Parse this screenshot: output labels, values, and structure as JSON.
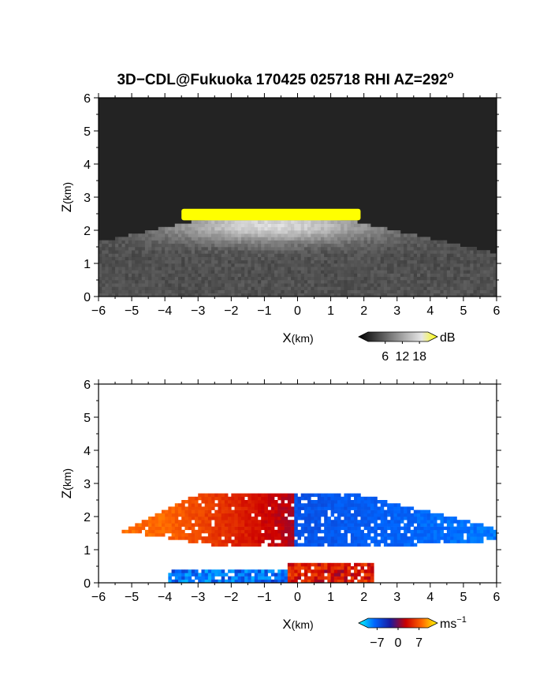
{
  "title": "3D−CDL@Fukuoka 170425 025718 RHI AZ=292",
  "title_sup": "o",
  "chart_data": [
    {
      "type": "heatmap",
      "name": "reflectivity",
      "xlabel_main": "X",
      "xlabel_unit": "(km)",
      "ylabel_main": "Z",
      "ylabel_unit": "(km)",
      "xlim": [
        -6,
        6
      ],
      "ylim": [
        0,
        6
      ],
      "xticks": [
        -6,
        -5,
        -4,
        -3,
        -2,
        -1,
        0,
        1,
        2,
        3,
        4,
        5,
        6
      ],
      "yticks": [
        0,
        1,
        2,
        3,
        4,
        5,
        6
      ],
      "colorbar": {
        "unit": "dB",
        "ticks": [
          6,
          12,
          18
        ],
        "range": [
          0,
          21
        ],
        "colors": [
          "#000000",
          "#3a3a3a",
          "#777777",
          "#b0b0b0",
          "#e6e6e6",
          "#ffff00"
        ]
      },
      "features": {
        "background": "#232323",
        "saturated_layer": {
          "x": [
            -3.5,
            1.9
          ],
          "z": [
            2.3,
            2.65
          ],
          "color": "#ffff00"
        },
        "melting_layer_top_km": 2.6
      }
    },
    {
      "type": "heatmap",
      "name": "doppler_velocity",
      "xlabel_main": "X",
      "xlabel_unit": "(km)",
      "ylabel_main": "Z",
      "ylabel_unit": "(km)",
      "xlim": [
        -6,
        6
      ],
      "ylim": [
        0,
        6
      ],
      "xticks": [
        -6,
        -5,
        -4,
        -3,
        -2,
        -1,
        0,
        1,
        2,
        3,
        4,
        5,
        6
      ],
      "yticks": [
        0,
        1,
        2,
        3,
        4,
        5,
        6
      ],
      "colorbar": {
        "unit": "ms",
        "unit_sup": "−1",
        "ticks": [
          -7,
          0,
          7
        ],
        "tick_labels": [
          "−7",
          "0",
          "7"
        ],
        "range": [
          -10,
          10
        ],
        "colors": [
          "#00ffff",
          "#0066ff",
          "#1a1aa0",
          "#cc0000",
          "#ff6600",
          "#ffff00"
        ]
      },
      "features": {
        "approaching_side_velocity_ms": 6,
        "receding_side_velocity_ms": -5,
        "echo_top_km": 2.7
      }
    }
  ]
}
